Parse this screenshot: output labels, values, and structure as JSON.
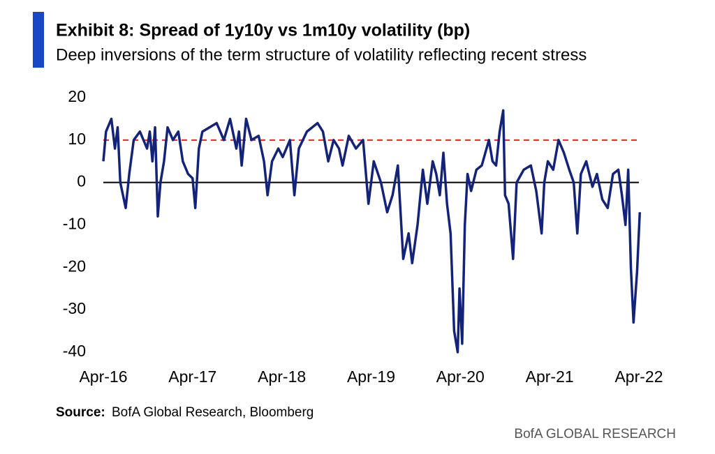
{
  "chart_data": {
    "type": "line",
    "title": "Exhibit 8: Spread of 1y10y vs 1m10y volatility (bp)",
    "subtitle": "Deep inversions of the term structure of volatility reflecting recent stress",
    "source_label": "Source:",
    "source": "BofA Global Research, Bloomberg",
    "brand": "BofA GLOBAL RESEARCH",
    "xlim": [
      2016.25,
      2022.25
    ],
    "xticks": [
      {
        "value": 2016.25,
        "label": "Apr-16"
      },
      {
        "value": 2017.25,
        "label": "Apr-17"
      },
      {
        "value": 2018.25,
        "label": "Apr-18"
      },
      {
        "value": 2019.25,
        "label": "Apr-19"
      },
      {
        "value": 2020.25,
        "label": "Apr-20"
      },
      {
        "value": 2021.25,
        "label": "Apr-21"
      },
      {
        "value": 2022.25,
        "label": "Apr-22"
      }
    ],
    "ylim": [
      -40,
      20
    ],
    "yticks": [
      -40,
      -30,
      -20,
      -10,
      0,
      10,
      20
    ],
    "grid": false,
    "reference_lines": [
      {
        "value": 10,
        "color": "#e8241f",
        "style": "dashed"
      },
      {
        "value": 0,
        "color": "#000000",
        "style": "solid"
      }
    ],
    "series": [
      {
        "color": "#14237a",
        "x": [
          2016.25,
          2016.28,
          2016.34,
          2016.38,
          2016.41,
          2016.44,
          2016.5,
          2016.54,
          2016.59,
          2016.66,
          2016.74,
          2016.77,
          2016.8,
          2016.83,
          2016.86,
          2016.89,
          2016.93,
          2016.97,
          2017.03,
          2017.09,
          2017.14,
          2017.2,
          2017.25,
          2017.28,
          2017.32,
          2017.36,
          2017.44,
          2017.52,
          2017.6,
          2017.67,
          2017.74,
          2017.77,
          2017.8,
          2017.85,
          2017.91,
          2017.99,
          2018.05,
          2018.09,
          2018.14,
          2018.21,
          2018.26,
          2018.34,
          2018.39,
          2018.44,
          2018.53,
          2018.65,
          2018.71,
          2018.77,
          2018.83,
          2018.89,
          2018.93,
          2019.0,
          2019.08,
          2019.16,
          2019.22,
          2019.28,
          2019.36,
          2019.43,
          2019.49,
          2019.55,
          2019.61,
          2019.67,
          2019.71,
          2019.77,
          2019.83,
          2019.88,
          2019.94,
          2019.98,
          2020.02,
          2020.06,
          2020.1,
          2020.14,
          2020.18,
          2020.22,
          2020.24,
          2020.27,
          2020.3,
          2020.33,
          2020.37,
          2020.43,
          2020.49,
          2020.57,
          2020.61,
          2020.65,
          2020.69,
          2020.73,
          2020.75,
          2020.79,
          2020.84,
          2020.88,
          2020.96,
          2021.04,
          2021.1,
          2021.16,
          2021.19,
          2021.23,
          2021.29,
          2021.35,
          2021.41,
          2021.47,
          2021.52,
          2021.56,
          2021.6,
          2021.66,
          2021.73,
          2021.78,
          2021.84,
          2021.9,
          2021.96,
          2022.02,
          2022.06,
          2022.1,
          2022.13,
          2022.16,
          2022.19,
          2022.23,
          2022.26
        ],
        "values": [
          5,
          12,
          15,
          8,
          13,
          0,
          -6,
          2,
          10,
          12,
          8,
          12,
          5,
          13,
          -8,
          0,
          5,
          13,
          10,
          12,
          5,
          2,
          1,
          -6,
          8,
          12,
          13,
          14,
          10,
          15,
          8,
          12,
          4,
          15,
          10,
          11,
          5,
          -3,
          5,
          8,
          6,
          10,
          -3,
          8,
          12,
          14,
          12,
          5,
          10,
          8,
          4,
          11,
          8,
          10,
          -5,
          5,
          0,
          -7,
          -3,
          4,
          -18,
          -12,
          -19,
          -10,
          3,
          -5,
          5,
          2,
          -3,
          7,
          -5,
          -12,
          -35,
          -40,
          -25,
          -38,
          -10,
          2,
          -2,
          3,
          4,
          10,
          5,
          4,
          12,
          17,
          -3,
          -5,
          -18,
          0,
          3,
          4,
          -2,
          -12,
          0,
          5,
          3,
          10,
          7,
          3,
          0,
          -12,
          2,
          5,
          -1,
          2,
          -4,
          -6,
          2,
          3,
          -3,
          -10,
          3,
          -20,
          -33,
          -21,
          -7
        ]
      }
    ]
  }
}
